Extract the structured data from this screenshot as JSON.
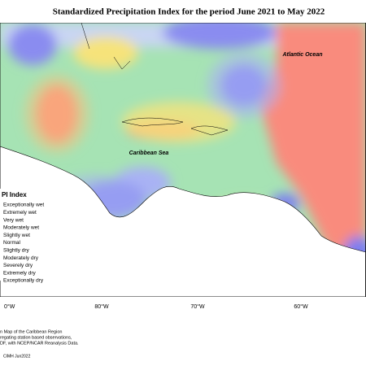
{
  "header": {
    "title": "Standardized Precipitation Index for the period June 2021 to May 2022"
  },
  "map": {
    "labels": [
      "Atlantic Ocean",
      "Caribbean Sea"
    ],
    "longitude_labels": [
      "0°W",
      "80°W",
      "70°W",
      "60°W"
    ]
  },
  "legend": {
    "title": "PI Index",
    "items": [
      "Exceptionally wet",
      "Extremely wet",
      "Very wet",
      "Moderately wet",
      "Slightly wet",
      "Normal",
      "Slightly dry",
      "Moderately dry",
      "Severely dry",
      "Extremely dry",
      "Exceptionally dry"
    ]
  },
  "footer": {
    "lines": [
      "n Map of the Caribbean Region",
      "regating station based observations,",
      "DF, with NCEP/NCAR Reanalysis Data."
    ],
    "credit": "CIMH Jun2022"
  }
}
